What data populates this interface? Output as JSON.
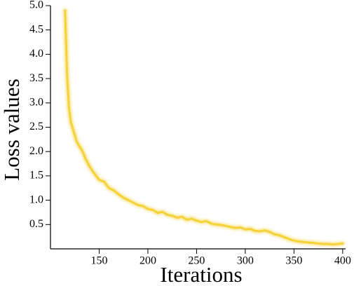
{
  "chart_data": {
    "type": "line",
    "x_label": "Iterations",
    "y_label": "Loss values",
    "xlim": [
      100,
      403
    ],
    "xticks": [
      150,
      200,
      250,
      300,
      350,
      400
    ],
    "ylim": [
      0,
      5
    ],
    "yticks": [
      0.5,
      {
        "value": 1,
        "label": "1.0"
      },
      1.5,
      {
        "value": 2,
        "label": "2.0"
      },
      2.5,
      {
        "value": 3,
        "label": "3.0"
      },
      3.5,
      {
        "value": 4,
        "label": "4.0"
      },
      4.5,
      {
        "value": 5,
        "label": "5.0"
      }
    ],
    "x": [
      115,
      117,
      119,
      121,
      124,
      127,
      130,
      133,
      136,
      140,
      145,
      150,
      155,
      160,
      165,
      170,
      175,
      180,
      185,
      190,
      195,
      200,
      205,
      210,
      215,
      220,
      225,
      230,
      235,
      240,
      245,
      250,
      255,
      260,
      265,
      270,
      275,
      280,
      285,
      290,
      295,
      300,
      305,
      310,
      315,
      320,
      325,
      330,
      335,
      340,
      345,
      350,
      355,
      360,
      365,
      370,
      375,
      380,
      385,
      390,
      395,
      400
    ],
    "series": [
      {
        "color": "#f4d23a",
        "values": [
          4.9,
          3.6,
          2.9,
          2.6,
          2.4,
          2.2,
          2.1,
          2.0,
          1.85,
          1.7,
          1.55,
          1.42,
          1.38,
          1.25,
          1.2,
          1.12,
          1.05,
          1.0,
          0.95,
          0.9,
          0.88,
          0.82,
          0.8,
          0.74,
          0.76,
          0.7,
          0.68,
          0.64,
          0.66,
          0.6,
          0.62,
          0.58,
          0.55,
          0.57,
          0.52,
          0.5,
          0.49,
          0.47,
          0.45,
          0.43,
          0.44,
          0.4,
          0.41,
          0.37,
          0.36,
          0.38,
          0.35,
          0.3,
          0.28,
          0.24,
          0.2,
          0.17,
          0.15,
          0.14,
          0.13,
          0.12,
          0.11,
          0.1,
          0.1,
          0.09,
          0.1,
          0.11
        ]
      }
    ]
  }
}
